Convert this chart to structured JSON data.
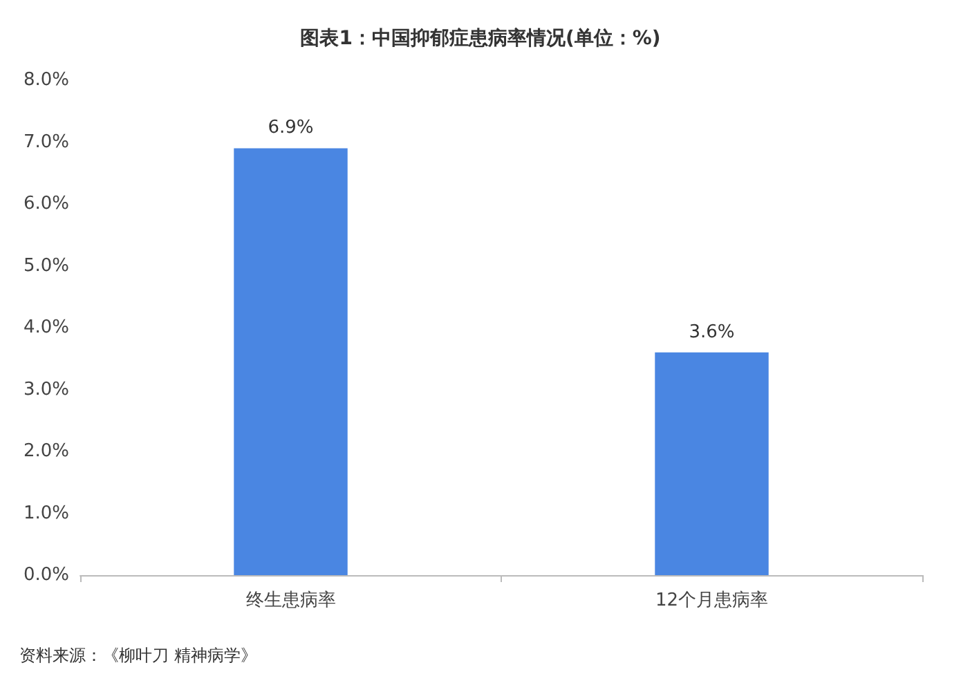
{
  "chart_data": {
    "type": "bar",
    "title": "图表1：中国抑郁症患病率情况(单位：%)",
    "categories": [
      "终生患病率",
      "12个月患病率"
    ],
    "values": [
      6.9,
      3.6
    ],
    "value_labels": [
      "6.9%",
      "3.6%"
    ],
    "color": "#4a86e2",
    "ylim": [
      0,
      8
    ],
    "yticks": [
      {
        "value": 0,
        "label": "0.0%"
      },
      {
        "value": 1,
        "label": "1.0%"
      },
      {
        "value": 2,
        "label": "2.0%"
      },
      {
        "value": 3,
        "label": "3.0%"
      },
      {
        "value": 4,
        "label": "4.0%"
      },
      {
        "value": 5,
        "label": "5.0%"
      },
      {
        "value": 6,
        "label": "6.0%"
      },
      {
        "value": 7,
        "label": "7.0%"
      },
      {
        "value": 8,
        "label": "8.0%"
      }
    ],
    "grid": false,
    "annotations": [
      "资料来源：《柳叶刀 精神病学》"
    ]
  }
}
